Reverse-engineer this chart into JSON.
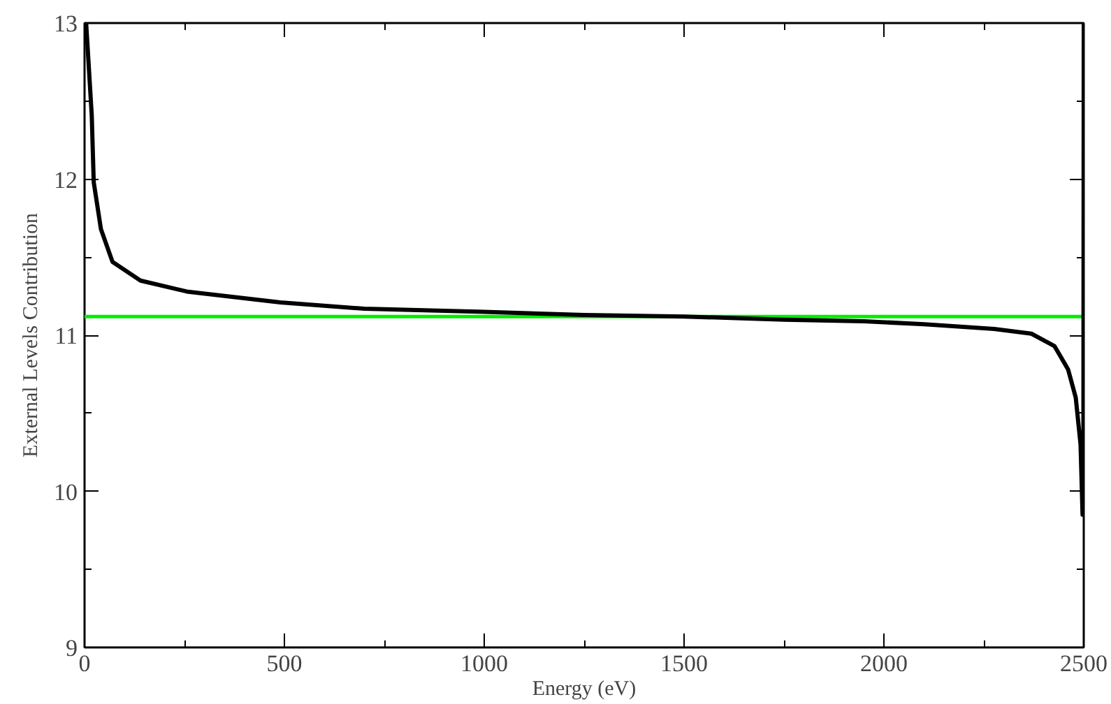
{
  "chart_data": {
    "type": "line",
    "xlabel": "Energy (eV)",
    "ylabel": "External Levels Contribution",
    "x": [
      4,
      18,
      23,
      41,
      70,
      140,
      256,
      490,
      700,
      1000,
      1250,
      1500,
      1751,
      1950,
      2101,
      2276,
      2369,
      2427,
      2461,
      2480,
      2492,
      2497,
      2499,
      2500
    ],
    "series": [
      {
        "color": "#000000",
        "values": [
          13.0,
          12.41,
          11.98,
          11.68,
          11.47,
          11.35,
          11.28,
          11.21,
          11.17,
          11.15,
          11.13,
          11.12,
          11.1,
          11.09,
          11.07,
          11.04,
          11.01,
          10.93,
          10.78,
          10.6,
          10.3,
          9.85,
          9.88,
          13.0
        ]
      }
    ],
    "xlim": [
      0,
      2500
    ],
    "ylim": [
      9,
      13
    ],
    "xticks": [
      0,
      500,
      1000,
      1500,
      2000,
      2500
    ],
    "yticks": [
      9,
      10,
      11,
      12,
      13
    ],
    "ref_lines": [
      {
        "axis": "y",
        "value": 11.12,
        "color": "#00ee00"
      }
    ],
    "grid": false,
    "marker": "none",
    "line_style": "solid"
  }
}
